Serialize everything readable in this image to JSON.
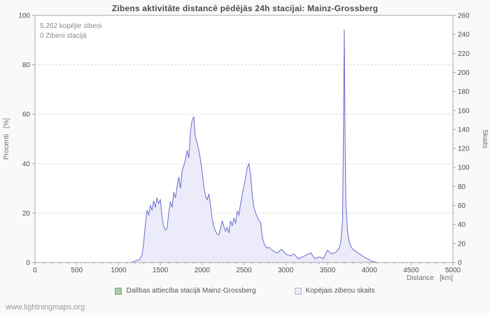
{
  "title": "Zibens aktivitāte distancē pēdējās 24h stacijai: Mainz-Grossberg",
  "annotations": {
    "total_strikes": "5,262 kopējie zibeņi",
    "station_strikes": "0 Zibeni stacijā"
  },
  "watermark": "www.lightningmaps.org",
  "legend": [
    {
      "label": "Dalības attiecība stacijā Mainz-Grossberg",
      "color": "#a5cfa5"
    },
    {
      "label": "Kopējais zibeņu skaits",
      "color": "#e9e9f8"
    }
  ],
  "chart_data": {
    "type": "area",
    "title": "Zibens aktivitāte distancē pēdējās 24h stacijai: Mainz-Grossberg",
    "xlabel": "Distance   [km]",
    "ylabel_left": "Procenti   [%]",
    "ylabel_right": "Skaits",
    "x_range": [
      0,
      5000
    ],
    "x_tick": 500,
    "x_minor_tick": 100,
    "y_left_range": [
      0,
      100
    ],
    "y_left_tick": 20,
    "y_right_range": [
      0,
      260
    ],
    "y_right_tick": 20,
    "grid": "horizontal-dotted",
    "legend_position": "bottom",
    "series": [
      {
        "name": "Kopējais zibeņu skaits",
        "axis": "right",
        "line_color": "#6a6ad0",
        "fill_color": "#e9e9f8",
        "x": [
          0,
          1000,
          1150,
          1250,
          1280,
          1300,
          1320,
          1340,
          1360,
          1380,
          1400,
          1420,
          1440,
          1460,
          1480,
          1500,
          1520,
          1540,
          1560,
          1580,
          1600,
          1620,
          1640,
          1660,
          1680,
          1700,
          1720,
          1740,
          1760,
          1780,
          1800,
          1820,
          1840,
          1860,
          1880,
          1900,
          1910,
          1920,
          1940,
          1960,
          1980,
          2000,
          2020,
          2040,
          2060,
          2080,
          2100,
          2120,
          2140,
          2160,
          2180,
          2200,
          2220,
          2240,
          2260,
          2280,
          2300,
          2320,
          2340,
          2360,
          2380,
          2400,
          2420,
          2440,
          2460,
          2480,
          2500,
          2520,
          2540,
          2560,
          2580,
          2600,
          2620,
          2640,
          2660,
          2680,
          2700,
          2720,
          2740,
          2760,
          2780,
          2800,
          2850,
          2900,
          2950,
          3000,
          3050,
          3100,
          3150,
          3200,
          3250,
          3300,
          3350,
          3400,
          3450,
          3500,
          3550,
          3600,
          3640,
          3660,
          3680,
          3690,
          3700,
          3710,
          3720,
          3740,
          3760,
          3780,
          3800,
          3850,
          3900,
          3950,
          4000,
          4030,
          4100,
          5000
        ],
        "y": [
          0,
          0,
          0,
          3,
          8,
          20,
          40,
          55,
          50,
          60,
          55,
          65,
          58,
          68,
          62,
          66,
          48,
          38,
          34,
          36,
          52,
          64,
          58,
          74,
          68,
          80,
          90,
          78,
          96,
          102,
          108,
          118,
          110,
          138,
          150,
          153,
          140,
          132,
          126,
          118,
          108,
          96,
          80,
          70,
          66,
          72,
          60,
          46,
          38,
          33,
          30,
          29,
          36,
          44,
          38,
          33,
          37,
          31,
          44,
          39,
          47,
          41,
          54,
          50,
          62,
          72,
          80,
          90,
          100,
          104,
          92,
          70,
          58,
          52,
          48,
          44,
          42,
          26,
          20,
          17,
          15,
          16,
          12,
          10,
          14,
          9,
          7,
          9,
          4,
          6,
          8,
          10,
          4,
          6,
          4,
          13,
          9,
          11,
          15,
          22,
          45,
          130,
          245,
          130,
          60,
          32,
          22,
          17,
          14,
          11,
          8,
          5,
          3,
          1,
          0,
          0
        ]
      },
      {
        "name": "Dalības attiecība stacijā Mainz-Grossberg",
        "axis": "left",
        "color": "#a5cfa5",
        "x": [],
        "y": []
      }
    ]
  }
}
